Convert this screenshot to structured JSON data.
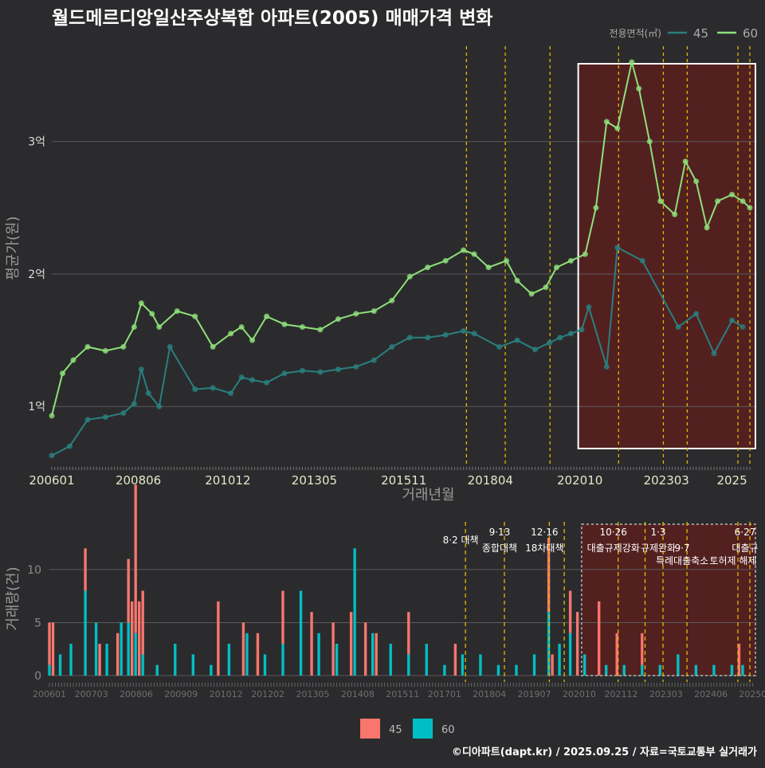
{
  "title": "월드메르디앙일산주상복합 아파트(2005) 매매가격 변화",
  "footer": "©디아파트(dapt.kr) / 2025.09.25 / 자료=국토교통부 실거래가",
  "colors": {
    "bg": "#2b2b2d",
    "line45": "#2a7f7f",
    "line60": "#8ee07a",
    "bar45": "#f8766d",
    "bar60": "#00bfc4",
    "policy": "#e6b800",
    "shade": "#5a1f1f"
  },
  "chart_data": [
    {
      "type": "line",
      "title": "월드메르디앙일산주상복합 아파트(2005) 매매가격 변화",
      "xlabel": "거래년월",
      "ylabel": "평균가(원)",
      "xlim": [
        2006.0,
        2025.7
      ],
      "ylim": [
        0.55,
        3.72
      ],
      "y_unit": "억",
      "yticks": [
        1,
        2,
        3
      ],
      "ytick_labels": [
        "1억",
        "2억",
        "3억"
      ],
      "xticks": [
        2006.0,
        2008.417,
        2010.917,
        2013.333,
        2015.833,
        2018.25,
        2020.75,
        2023.167,
        2025.0
      ],
      "xtick_labels": [
        "200601",
        "200806",
        "201012",
        "201305",
        "201511",
        "201804",
        "202010",
        "202303",
        "2025"
      ],
      "legend_title": "전용면적(㎡)",
      "policy_lines": [
        2017.583,
        2018.667,
        2019.917,
        2021.833,
        2023.083,
        2023.75,
        2025.167,
        2025.5
      ],
      "highlight_range": [
        2020.75,
        2025.7
      ],
      "series": [
        {
          "name": "45",
          "x": [
            2006.0,
            2006.5,
            2007.0,
            2007.5,
            2008.0,
            2008.3,
            2008.5,
            2008.7,
            2009.0,
            2009.3,
            2010.0,
            2010.5,
            2011.0,
            2011.3,
            2011.6,
            2012.0,
            2012.5,
            2013.0,
            2013.5,
            2014.0,
            2014.5,
            2015.0,
            2015.5,
            2016.0,
            2016.5,
            2017.0,
            2017.5,
            2017.8,
            2018.5,
            2019.0,
            2019.5,
            2019.9,
            2020.2,
            2020.5,
            2020.8,
            2021.0,
            2021.5,
            2021.8,
            2022.5,
            2023.5,
            2024.0,
            2024.5,
            2025.0,
            2025.3
          ],
          "y": [
            0.63,
            0.7,
            0.9,
            0.92,
            0.95,
            1.02,
            1.28,
            1.1,
            1.0,
            1.45,
            1.13,
            1.14,
            1.1,
            1.22,
            1.2,
            1.18,
            1.25,
            1.27,
            1.26,
            1.28,
            1.3,
            1.35,
            1.45,
            1.52,
            1.52,
            1.54,
            1.57,
            1.55,
            1.45,
            1.5,
            1.43,
            1.48,
            1.52,
            1.55,
            1.58,
            1.75,
            1.3,
            2.2,
            2.1,
            1.6,
            1.7,
            1.4,
            1.65,
            1.6
          ]
        },
        {
          "name": "60",
          "x": [
            2006.0,
            2006.3,
            2006.6,
            2007.0,
            2007.5,
            2008.0,
            2008.3,
            2008.5,
            2008.8,
            2009.0,
            2009.5,
            2010.0,
            2010.5,
            2011.0,
            2011.3,
            2011.6,
            2012.0,
            2012.5,
            2013.0,
            2013.5,
            2014.0,
            2014.5,
            2015.0,
            2015.5,
            2016.0,
            2016.5,
            2017.0,
            2017.5,
            2017.8,
            2018.2,
            2018.7,
            2019.0,
            2019.4,
            2019.8,
            2020.1,
            2020.5,
            2020.9,
            2021.2,
            2021.5,
            2021.8,
            2022.2,
            2022.4,
            2022.7,
            2023.0,
            2023.4,
            2023.7,
            2024.0,
            2024.3,
            2024.6,
            2025.0,
            2025.3,
            2025.5
          ],
          "y": [
            0.93,
            1.25,
            1.35,
            1.45,
            1.42,
            1.45,
            1.6,
            1.78,
            1.7,
            1.6,
            1.72,
            1.68,
            1.45,
            1.55,
            1.6,
            1.5,
            1.68,
            1.62,
            1.6,
            1.58,
            1.66,
            1.7,
            1.72,
            1.8,
            1.98,
            2.05,
            2.1,
            2.18,
            2.15,
            2.05,
            2.1,
            1.95,
            1.85,
            1.9,
            2.05,
            2.1,
            2.15,
            2.5,
            3.15,
            3.1,
            3.6,
            3.4,
            3.0,
            2.55,
            2.45,
            2.85,
            2.7,
            2.35,
            2.55,
            2.6,
            2.55,
            2.5
          ]
        }
      ]
    },
    {
      "type": "bar",
      "xlabel": "",
      "ylabel": "거래량(건)",
      "xlim": [
        2006.0,
        2025.7
      ],
      "ylim": [
        0,
        14.5
      ],
      "yticks": [
        0,
        5,
        10
      ],
      "ytick_labels": [
        "0",
        "5",
        "10"
      ],
      "xticks": [
        2006.0,
        2007.167,
        2008.417,
        2009.667,
        2010.917,
        2012.083,
        2013.333,
        2014.583,
        2015.833,
        2017.0,
        2018.25,
        2019.5,
        2020.75,
        2021.917,
        2023.167,
        2024.417,
        2025.583
      ],
      "xtick_labels": [
        "200601",
        "200703",
        "200806",
        "200909",
        "201012",
        "201202",
        "201305",
        "201408",
        "201511",
        "201701",
        "201804",
        "201907",
        "202010",
        "202112",
        "202303",
        "202406",
        "20250"
      ],
      "policy_lines": [
        2017.583,
        2018.667,
        2019.917,
        2020.333,
        2021.833,
        2022.583,
        2023.083,
        2023.75,
        2025.167,
        2025.5
      ],
      "policy_labels": [
        {
          "x": 2017.583,
          "lines": [
            "8·2 대책"
          ]
        },
        {
          "x": 2018.667,
          "lines": [
            "9·13",
            "종합대책"
          ]
        },
        {
          "x": 2019.917,
          "lines": [
            "12·16",
            "18차대책"
          ]
        },
        {
          "x": 2021.833,
          "lines": [
            "10·26",
            "대출규제강화"
          ]
        },
        {
          "x": 2023.083,
          "lines": [
            "1·3",
            "규제완화"
          ]
        },
        {
          "x": 2023.75,
          "lines": [
            "",
            "9·7",
            "특례대출축소"
          ]
        },
        {
          "x": 2025.167,
          "lines": [
            "",
            "",
            "토허제 해제"
          ]
        },
        {
          "x": 2025.5,
          "lines": [
            "6·27",
            "대출규"
          ]
        }
      ],
      "highlight_range": [
        2020.75,
        2025.7
      ],
      "series": [
        {
          "name": "45",
          "x": [
            2006.0,
            2006.1,
            2007.0,
            2007.4,
            2007.9,
            2008.2,
            2008.3,
            2008.4,
            2008.5,
            2008.6,
            2010.7,
            2011.4,
            2011.8,
            2012.5,
            2013.3,
            2013.9,
            2014.4,
            2014.8,
            2015.1,
            2016.0,
            2017.3,
            2019.9,
            2020.0,
            2020.5,
            2020.7,
            2021.3,
            2021.8,
            2022.5,
            2025.2
          ],
          "y": [
            4,
            5,
            4,
            3,
            4,
            6,
            7,
            14,
            7,
            6,
            7,
            5,
            4,
            5,
            6,
            5,
            6,
            5,
            4,
            4,
            3,
            7,
            2,
            4,
            6,
            7,
            4,
            3,
            3
          ]
        },
        {
          "name": "60",
          "x": [
            2006.0,
            2006.3,
            2006.6,
            2007.0,
            2007.3,
            2007.6,
            2008.0,
            2008.2,
            2008.4,
            2008.6,
            2009.0,
            2009.5,
            2010.0,
            2010.5,
            2011.0,
            2011.5,
            2012.0,
            2012.5,
            2013.0,
            2013.5,
            2014.0,
            2014.5,
            2015.0,
            2015.5,
            2016.0,
            2016.5,
            2017.0,
            2017.5,
            2018.0,
            2018.5,
            2019.0,
            2019.5,
            2019.9,
            2020.2,
            2020.5,
            2020.9,
            2021.5,
            2022.0,
            2022.5,
            2023.0,
            2023.5,
            2024.0,
            2024.5,
            2025.0,
            2025.3
          ],
          "y": [
            1,
            2,
            3,
            8,
            5,
            3,
            5,
            5,
            4,
            2,
            1,
            3,
            2,
            1,
            3,
            4,
            2,
            3,
            8,
            4,
            3,
            12,
            4,
            3,
            2,
            3,
            1,
            2,
            2,
            1,
            1,
            2,
            6,
            3,
            4,
            2,
            1,
            1,
            1,
            1,
            2,
            1,
            1,
            1,
            1
          ]
        }
      ]
    }
  ],
  "legend_bottom": [
    {
      "name": "45"
    },
    {
      "name": "60"
    }
  ]
}
